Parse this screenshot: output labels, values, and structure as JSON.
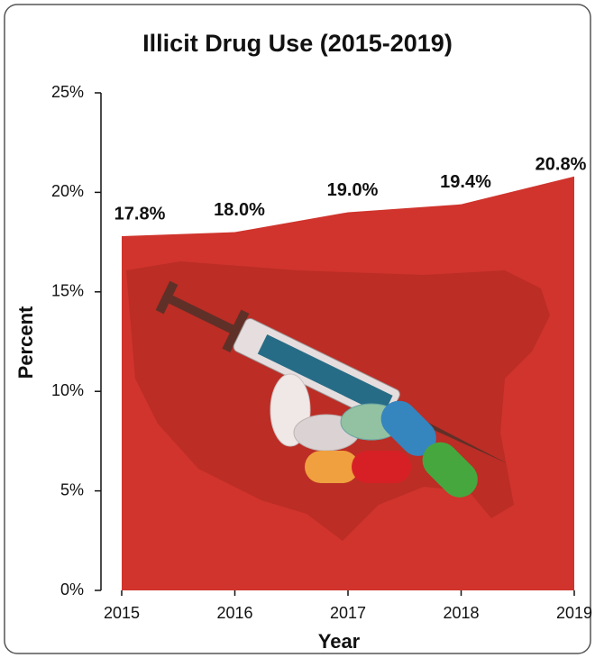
{
  "chart_data": {
    "type": "area",
    "title": "Illicit Drug Use (2015-2019)",
    "xlabel": "Year",
    "ylabel": "Percent",
    "categories": [
      "2015",
      "2016",
      "2017",
      "2018",
      "2019"
    ],
    "values": [
      17.8,
      18.0,
      19.0,
      19.4,
      20.8
    ],
    "value_labels": [
      "17.8%",
      "18.0%",
      "19.0%",
      "19.4%",
      "20.8%"
    ],
    "color": "#d0342c",
    "ylim": [
      0,
      25
    ],
    "yticks": [
      {
        "value": 0,
        "label": "0%"
      },
      {
        "value": 5,
        "label": "5%"
      },
      {
        "value": 10,
        "label": "10%"
      },
      {
        "value": 15,
        "label": "15%"
      },
      {
        "value": 20,
        "label": "20%"
      },
      {
        "value": 25,
        "label": "25%"
      }
    ]
  }
}
